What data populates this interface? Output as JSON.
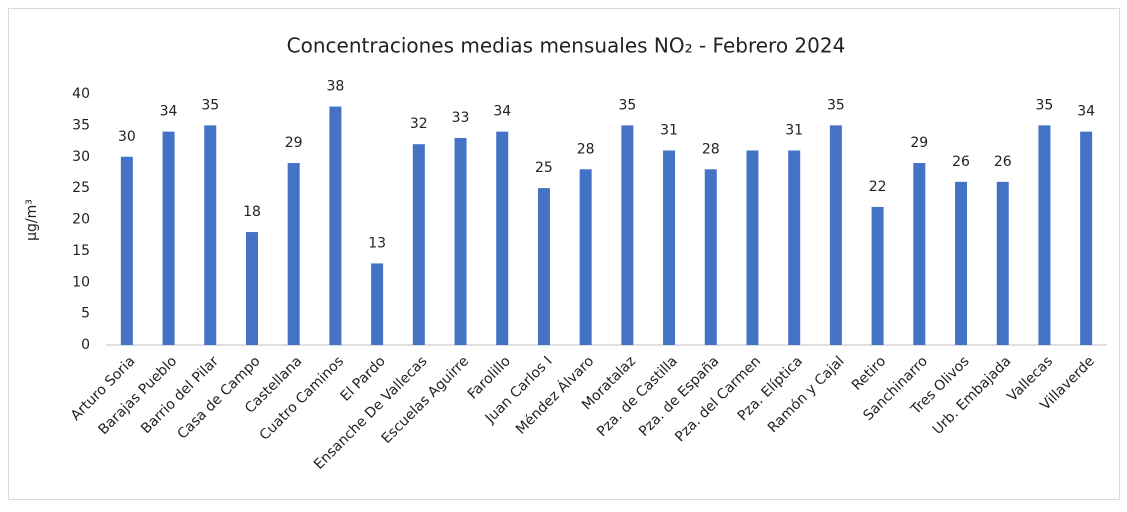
{
  "chart_data": {
    "type": "bar",
    "title": "Concentraciones medias mensuales NO₂ - Febrero 2024",
    "ylabel": "µg/m³",
    "categories": [
      "Arturo Soria",
      "Barajas Pueblo",
      "Barrio del Pilar",
      "Casa de Campo",
      "Castellana",
      "Cuatro Caminos",
      "El Pardo",
      "Ensanche De Vallecas",
      "Escuelas Aguirre",
      "Farolillo",
      "Juan Carlos I",
      "Méndez Álvaro",
      "Moratalaz",
      "Pza. de Castilla",
      "Pza. de España",
      "Pza. del Carmen",
      "Pza. Elíptica",
      "Ramón y Cajal",
      "Retiro",
      "Sanchinarro",
      "Tres Olivos",
      "Urb. Embajada",
      "Vallecas",
      "Villaverde"
    ],
    "values": [
      30,
      34,
      35,
      18,
      29,
      38,
      13,
      32,
      33,
      34,
      25,
      28,
      35,
      31,
      28,
      31,
      31,
      35,
      22,
      29,
      26,
      26,
      35,
      34
    ],
    "value_labels": [
      "30",
      "34",
      "35",
      "18",
      "29",
      "38",
      "13",
      "32",
      "33",
      "34",
      "25",
      "28",
      "35",
      "31",
      "28",
      null,
      "31",
      "35",
      "22",
      "29",
      "26",
      "26",
      "35",
      "34"
    ],
    "color": "#4472c4",
    "ylim": [
      0,
      40
    ],
    "yticks": [
      0,
      5,
      10,
      15,
      20,
      25,
      30,
      35,
      40
    ],
    "grid": false
  }
}
